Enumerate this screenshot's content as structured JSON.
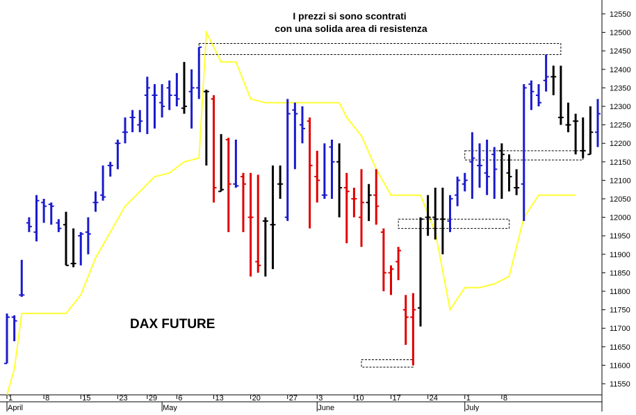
{
  "chart_data": {
    "type": "ohlc",
    "title": "DAX FUTURE",
    "annotation": [
      "I prezzi si sono scontrati",
      "con una solida area di resistenza"
    ],
    "ylim": [
      11520,
      12580
    ],
    "y_ticks": [
      11550,
      11600,
      11650,
      11700,
      11750,
      11800,
      11850,
      11900,
      11950,
      12000,
      12050,
      12100,
      12150,
      12200,
      12250,
      12300,
      12350,
      12400,
      12450,
      12500,
      12550
    ],
    "x_tick_labels": [
      {
        "i": 0,
        "label": "1"
      },
      {
        "i": 5,
        "label": "8"
      },
      {
        "i": 10,
        "label": "15"
      },
      {
        "i": 15,
        "label": "23"
      },
      {
        "i": 19,
        "label": "29"
      },
      {
        "i": 23,
        "label": "6"
      },
      {
        "i": 28,
        "label": "13"
      },
      {
        "i": 33,
        "label": "20"
      },
      {
        "i": 38,
        "label": "27"
      },
      {
        "i": 42,
        "label": "3"
      },
      {
        "i": 47,
        "label": "10"
      },
      {
        "i": 52,
        "label": "17"
      },
      {
        "i": 57,
        "label": "24"
      },
      {
        "i": 62,
        "label": "1"
      },
      {
        "i": 67,
        "label": "8"
      }
    ],
    "month_labels": [
      {
        "i": 0,
        "label": "April"
      },
      {
        "i": 21,
        "label": "May"
      },
      {
        "i": 42,
        "label": "June"
      },
      {
        "i": 62,
        "label": "July"
      }
    ],
    "bar_colors": {
      "up": "#1a1acc",
      "down": "#e00000",
      "neutral": "#000000",
      "line": "#ffff33"
    },
    "bars": [
      {
        "o": 11605,
        "h": 11740,
        "l": 11605,
        "c": 11730,
        "col": "blue"
      },
      {
        "o": 11730,
        "h": 11735,
        "l": 11665,
        "c": 11720,
        "col": "blue"
      },
      {
        "o": 11790,
        "h": 11885,
        "l": 11785,
        "c": 11790,
        "col": "blue"
      },
      {
        "o": 11985,
        "h": 12000,
        "l": 11960,
        "c": 11975,
        "col": "blue"
      },
      {
        "o": 11960,
        "h": 12060,
        "l": 11935,
        "c": 12045,
        "col": "blue"
      },
      {
        "o": 12040,
        "h": 12050,
        "l": 11985,
        "c": 12030,
        "col": "blue"
      },
      {
        "o": 12035,
        "h": 12040,
        "l": 11980,
        "c": 12030,
        "col": "blue"
      },
      {
        "o": 11985,
        "h": 11995,
        "l": 11960,
        "c": 11970,
        "col": "blue"
      },
      {
        "o": 11980,
        "h": 12015,
        "l": 11870,
        "c": 11870,
        "col": "black"
      },
      {
        "o": 11875,
        "h": 11970,
        "l": 11865,
        "c": 11875,
        "col": "black"
      },
      {
        "o": 11950,
        "h": 11960,
        "l": 11870,
        "c": 11955,
        "col": "blue"
      },
      {
        "o": 11960,
        "h": 12000,
        "l": 11900,
        "c": 11955,
        "col": "blue"
      },
      {
        "o": 12040,
        "h": 12070,
        "l": 12015,
        "c": 12040,
        "col": "blue"
      },
      {
        "o": 12060,
        "h": 12140,
        "l": 12045,
        "c": 12055,
        "col": "blue"
      },
      {
        "o": 12140,
        "h": 12150,
        "l": 12110,
        "c": 12140,
        "col": "blue"
      },
      {
        "o": 12200,
        "h": 12210,
        "l": 12130,
        "c": 12200,
        "col": "blue"
      },
      {
        "o": 12230,
        "h": 12270,
        "l": 12200,
        "c": 12230,
        "col": "blue"
      },
      {
        "o": 12270,
        "h": 12290,
        "l": 12230,
        "c": 12270,
        "col": "blue"
      },
      {
        "o": 12250,
        "h": 12290,
        "l": 12230,
        "c": 12260,
        "col": "blue"
      },
      {
        "o": 12330,
        "h": 12380,
        "l": 12225,
        "c": 12350,
        "col": "blue"
      },
      {
        "o": 12330,
        "h": 12360,
        "l": 12240,
        "c": 12330,
        "col": "blue"
      },
      {
        "o": 12310,
        "h": 12360,
        "l": 12270,
        "c": 12300,
        "col": "blue"
      },
      {
        "o": 12350,
        "h": 12370,
        "l": 12290,
        "c": 12330,
        "col": "blue"
      },
      {
        "o": 12330,
        "h": 12390,
        "l": 12300,
        "c": 12320,
        "col": "blue"
      },
      {
        "o": 12295,
        "h": 12420,
        "l": 12280,
        "c": 12300,
        "col": "black"
      },
      {
        "o": 12340,
        "h": 12400,
        "l": 12240,
        "c": 12350,
        "col": "blue"
      },
      {
        "o": 12350,
        "h": 12460,
        "l": 12320,
        "c": 12460,
        "col": "blue"
      },
      {
        "o": 12340,
        "h": 12345,
        "l": 12140,
        "c": 12340,
        "col": "black"
      },
      {
        "o": 12320,
        "h": 12330,
        "l": 12040,
        "c": 12080,
        "col": "red"
      },
      {
        "o": 12070,
        "h": 12225,
        "l": 12070,
        "c": 12075,
        "col": "black"
      },
      {
        "o": 12210,
        "h": 12215,
        "l": 11960,
        "c": 12090,
        "col": "red"
      },
      {
        "o": 12090,
        "h": 12210,
        "l": 12080,
        "c": 12085,
        "col": "blue"
      },
      {
        "o": 12110,
        "h": 12120,
        "l": 11960,
        "c": 12090,
        "col": "red"
      },
      {
        "o": 12000,
        "h": 12120,
        "l": 11840,
        "c": 12000,
        "col": "red"
      },
      {
        "o": 11880,
        "h": 12115,
        "l": 11850,
        "c": 11870,
        "col": "red"
      },
      {
        "o": 11990,
        "h": 12000,
        "l": 11840,
        "c": 11990,
        "col": "black"
      },
      {
        "o": 11980,
        "h": 12140,
        "l": 11860,
        "c": 11980,
        "col": "black"
      },
      {
        "o": 12090,
        "h": 12140,
        "l": 12050,
        "c": 12090,
        "col": "black"
      },
      {
        "o": 12000,
        "h": 12320,
        "l": 11990,
        "c": 12280,
        "col": "blue"
      },
      {
        "o": 12290,
        "h": 12310,
        "l": 12130,
        "c": 12280,
        "col": "blue"
      },
      {
        "o": 12250,
        "h": 12300,
        "l": 12200,
        "c": 12240,
        "col": "blue"
      },
      {
        "o": 12260,
        "h": 12270,
        "l": 11970,
        "c": 12140,
        "col": "red"
      },
      {
        "o": 12110,
        "h": 12180,
        "l": 12040,
        "c": 12100,
        "col": "red"
      },
      {
        "o": 12060,
        "h": 12200,
        "l": 12050,
        "c": 12060,
        "col": "blue"
      },
      {
        "o": 12190,
        "h": 12210,
        "l": 12050,
        "c": 12150,
        "col": "blue"
      },
      {
        "o": 12150,
        "h": 12200,
        "l": 12000,
        "c": 12080,
        "col": "black"
      },
      {
        "o": 12080,
        "h": 12120,
        "l": 11930,
        "c": 12070,
        "col": "red"
      },
      {
        "o": 12050,
        "h": 12080,
        "l": 12000,
        "c": 12050,
        "col": "red"
      },
      {
        "o": 12000,
        "h": 12130,
        "l": 11920,
        "c": 12040,
        "col": "red"
      },
      {
        "o": 12040,
        "h": 12090,
        "l": 11990,
        "c": 12060,
        "col": "black"
      },
      {
        "o": 12060,
        "h": 12130,
        "l": 11980,
        "c": 12030,
        "col": "red"
      },
      {
        "o": 11960,
        "h": 11970,
        "l": 11800,
        "c": 11850,
        "col": "red"
      },
      {
        "o": 11850,
        "h": 11870,
        "l": 11790,
        "c": 11860,
        "col": "red"
      },
      {
        "o": 11880,
        "h": 11920,
        "l": 11830,
        "c": 11910,
        "col": "red"
      },
      {
        "o": 11750,
        "h": 11790,
        "l": 11655,
        "c": 11730,
        "col": "red"
      },
      {
        "o": 11730,
        "h": 11795,
        "l": 11600,
        "c": 11750,
        "col": "red"
      },
      {
        "o": 11755,
        "h": 12000,
        "l": 11705,
        "c": 11995,
        "col": "black"
      },
      {
        "o": 12000,
        "h": 12060,
        "l": 11950,
        "c": 12000,
        "col": "black"
      },
      {
        "o": 12000,
        "h": 12080,
        "l": 11940,
        "c": 11995,
        "col": "black"
      },
      {
        "o": 11995,
        "h": 12080,
        "l": 11900,
        "c": 11995,
        "col": "black"
      },
      {
        "o": 11990,
        "h": 12060,
        "l": 11960,
        "c": 12050,
        "col": "blue"
      },
      {
        "o": 12060,
        "h": 12110,
        "l": 12030,
        "c": 12100,
        "col": "blue"
      },
      {
        "o": 12090,
        "h": 12120,
        "l": 12070,
        "c": 12100,
        "col": "blue"
      },
      {
        "o": 12150,
        "h": 12230,
        "l": 12050,
        "c": 12160,
        "col": "blue"
      },
      {
        "o": 12140,
        "h": 12200,
        "l": 12080,
        "c": 12140,
        "col": "blue"
      },
      {
        "o": 12120,
        "h": 12210,
        "l": 12060,
        "c": 12110,
        "col": "blue"
      },
      {
        "o": 12170,
        "h": 12190,
        "l": 12050,
        "c": 12130,
        "col": "blue"
      },
      {
        "o": 12180,
        "h": 12200,
        "l": 12050,
        "c": 12170,
        "col": "black"
      },
      {
        "o": 12120,
        "h": 12170,
        "l": 12070,
        "c": 12110,
        "col": "black"
      },
      {
        "o": 12080,
        "h": 12130,
        "l": 12060,
        "c": 12080,
        "col": "black"
      },
      {
        "o": 12090,
        "h": 12360,
        "l": 11990,
        "c": 12350,
        "col": "blue"
      },
      {
        "o": 12360,
        "h": 12370,
        "l": 12290,
        "c": 12340,
        "col": "blue"
      },
      {
        "o": 12330,
        "h": 12360,
        "l": 12300,
        "c": 12310,
        "col": "blue"
      },
      {
        "o": 12370,
        "h": 12440,
        "l": 12340,
        "c": 12380,
        "col": "blue"
      },
      {
        "o": 12380,
        "h": 12410,
        "l": 12330,
        "c": 12380,
        "col": "black"
      },
      {
        "o": 12270,
        "h": 12410,
        "l": 12250,
        "c": 12270,
        "col": "black"
      },
      {
        "o": 12250,
        "h": 12310,
        "l": 12230,
        "c": 12250,
        "col": "black"
      },
      {
        "o": 12260,
        "h": 12280,
        "l": 12170,
        "c": 12260,
        "col": "black"
      },
      {
        "o": 12180,
        "h": 12270,
        "l": 12160,
        "c": 12180,
        "col": "black"
      },
      {
        "o": 12170,
        "h": 12300,
        "l": 12170,
        "c": 12230,
        "col": "black"
      },
      {
        "o": 12230,
        "h": 12320,
        "l": 12190,
        "c": 12280,
        "col": "blue"
      }
    ],
    "trailing_line": [
      [
        0,
        11520
      ],
      [
        1,
        11590
      ],
      [
        2,
        11740
      ],
      [
        4,
        11740
      ],
      [
        6,
        11740
      ],
      [
        8,
        11740
      ],
      [
        10,
        11790
      ],
      [
        12,
        11890
      ],
      [
        14,
        11960
      ],
      [
        16,
        12030
      ],
      [
        18,
        12070
      ],
      [
        20,
        12110
      ],
      [
        22,
        12120
      ],
      [
        24,
        12150
      ],
      [
        26,
        12160
      ],
      [
        27,
        12500
      ],
      [
        29,
        12420
      ],
      [
        31,
        12420
      ],
      [
        33,
        12320
      ],
      [
        35,
        12310
      ],
      [
        40,
        12310
      ],
      [
        45,
        12310
      ],
      [
        46,
        12270
      ],
      [
        48,
        12220
      ],
      [
        50,
        12130
      ],
      [
        52,
        12060
      ],
      [
        56,
        12060
      ],
      [
        58,
        11960
      ],
      [
        60,
        11750
      ],
      [
        62,
        11810
      ],
      [
        64,
        11810
      ],
      [
        66,
        11820
      ],
      [
        68,
        11840
      ],
      [
        70,
        12000
      ],
      [
        72,
        12060
      ],
      [
        74,
        12060
      ],
      [
        77,
        12060
      ]
    ],
    "boxes": [
      {
        "x0": 26,
        "x1": 75,
        "y0": 12470,
        "y1": 12440
      },
      {
        "x0": 62,
        "x1": 78,
        "y0": 12180,
        "y1": 12155
      },
      {
        "x0": 53,
        "x1": 68,
        "y0": 11995,
        "y1": 11970
      },
      {
        "x0": 48,
        "x1": 55,
        "y0": 11615,
        "y1": 11595
      }
    ]
  }
}
